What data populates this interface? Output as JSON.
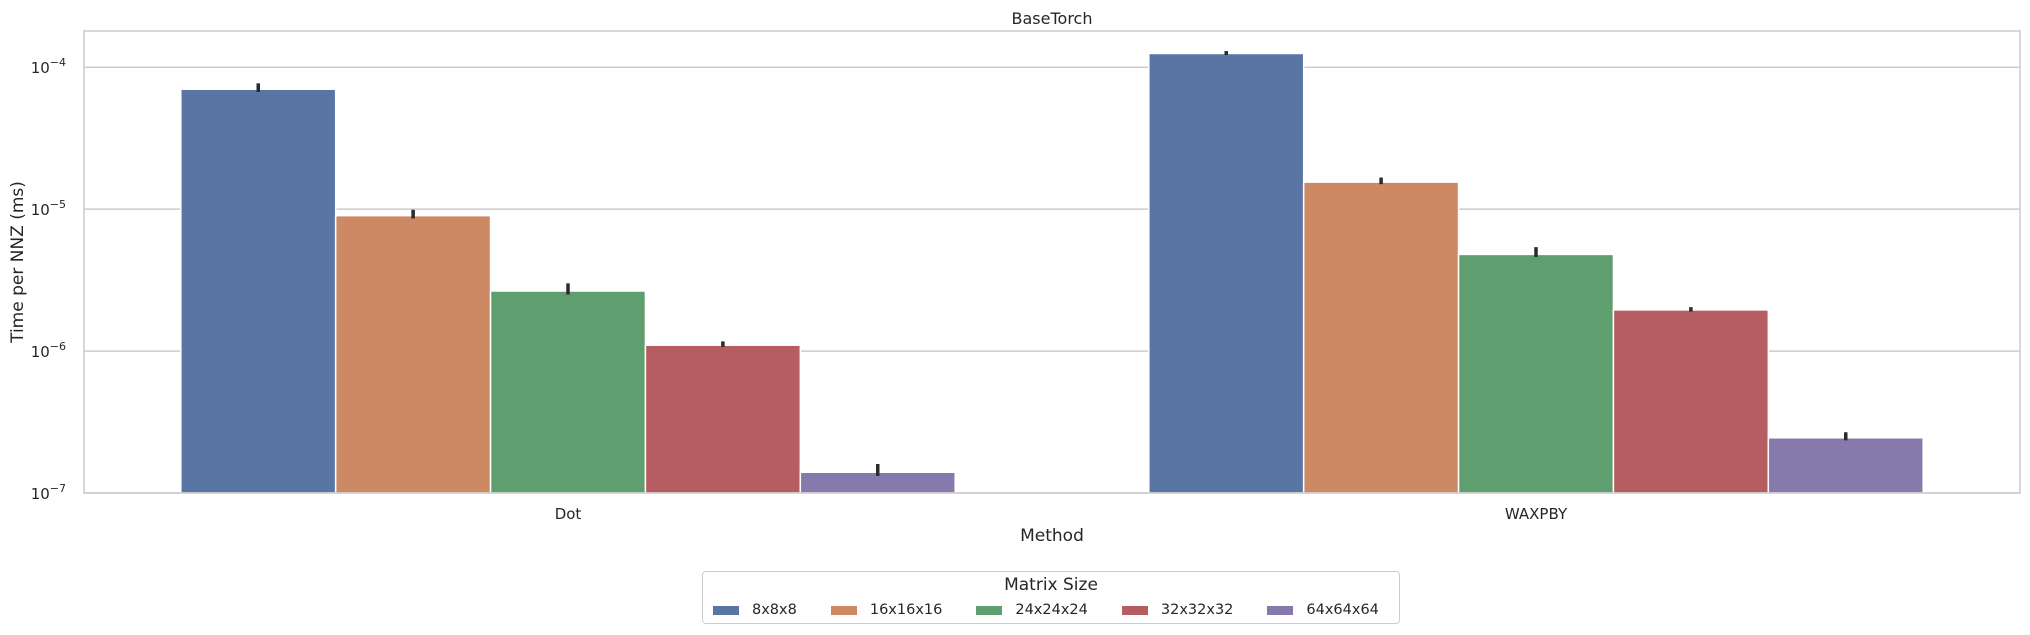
{
  "chart_data": {
    "type": "bar",
    "title": "BaseTorch",
    "xlabel": "Method",
    "ylabel": "Time per NNZ (ms)",
    "yscale": "log",
    "ylim": [
      1e-07,
      0.00018
    ],
    "yticks": [
      {
        "value": 1e-07,
        "mantissa": "10",
        "exp": "−7"
      },
      {
        "value": 1e-06,
        "mantissa": "10",
        "exp": "−6"
      },
      {
        "value": 1e-05,
        "mantissa": "10",
        "exp": "−5"
      },
      {
        "value": 0.0001,
        "mantissa": "10",
        "exp": "−4"
      }
    ],
    "grid": true,
    "categories": [
      "Dot",
      "WAXPBY"
    ],
    "series": [
      {
        "name": "8x8x8",
        "color": "#5975a4",
        "values": [
          7e-05,
          0.000125
        ],
        "err_low": [
          6.7e-05,
          0.000122
        ],
        "err_high": [
          7.7e-05,
          0.00013
        ]
      },
      {
        "name": "16x16x16",
        "color": "#cc8963",
        "values": [
          9e-06,
          1.55e-05
        ],
        "err_low": [
          8.6e-06,
          1.5e-05
        ],
        "err_high": [
          9.9e-06,
          1.67e-05
        ]
      },
      {
        "name": "24x24x24",
        "color": "#5f9e6e",
        "values": [
          2.65e-06,
          4.8e-06
        ],
        "err_low": [
          2.5e-06,
          4.6e-06
        ],
        "err_high": [
          3e-06,
          5.4e-06
        ]
      },
      {
        "name": "32x32x32",
        "color": "#b55d60",
        "values": [
          1.1e-06,
          1.95e-06
        ],
        "err_low": [
          1.07e-06,
          1.9e-06
        ],
        "err_high": [
          1.17e-06,
          2.04e-06
        ]
      },
      {
        "name": "64x64x64",
        "color": "#857aab",
        "values": [
          1.4e-07,
          2.45e-07
        ],
        "err_low": [
          1.32e-07,
          2.35e-07
        ],
        "err_high": [
          1.6e-07,
          2.68e-07
        ]
      }
    ],
    "legend": {
      "title": "Matrix Size",
      "placement": "bottom-center"
    }
  }
}
